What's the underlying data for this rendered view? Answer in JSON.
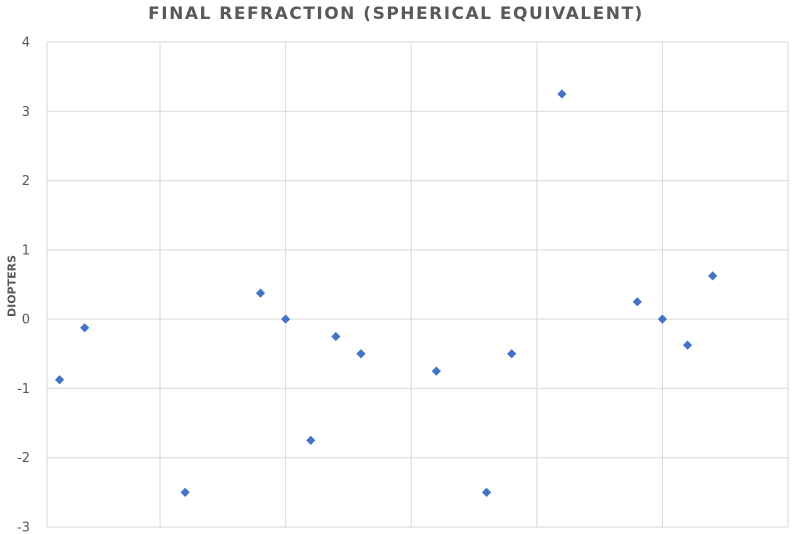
{
  "chart_data": {
    "type": "scatter",
    "title": "FINAL REFRACTION (SPHERICAL EQUIVALENT)",
    "xlabel": "",
    "ylabel": "DIOPTERS",
    "ylim": [
      -3,
      4
    ],
    "yticks": [
      4,
      3,
      2,
      1,
      0,
      -1,
      -2,
      -3
    ],
    "xlim": [
      0,
      29.5
    ],
    "x_gridlines": [
      4.5,
      9.5,
      14.5,
      19.5,
      24.5,
      29.5
    ],
    "grid": true,
    "legend": "none",
    "marker": "diamond",
    "marker_color": "#4472C4",
    "series": [
      {
        "values": [
          {
            "x": 0.5,
            "y": -0.875
          },
          {
            "x": 1.5,
            "y": -0.125
          },
          {
            "x": 5.5,
            "y": -2.5
          },
          {
            "x": 8.5,
            "y": 0.375
          },
          {
            "x": 9.5,
            "y": 0
          },
          {
            "x": 10.5,
            "y": -1.75
          },
          {
            "x": 11.5,
            "y": -0.25
          },
          {
            "x": 12.5,
            "y": -0.5
          },
          {
            "x": 15.5,
            "y": -0.75
          },
          {
            "x": 17.5,
            "y": -2.5
          },
          {
            "x": 18.5,
            "y": -0.5
          },
          {
            "x": 20.5,
            "y": 3.25
          },
          {
            "x": 23.5,
            "y": 0.25
          },
          {
            "x": 24.5,
            "y": 0
          },
          {
            "x": 25.5,
            "y": -0.375
          },
          {
            "x": 26.5,
            "y": 0.625
          }
        ]
      }
    ]
  }
}
